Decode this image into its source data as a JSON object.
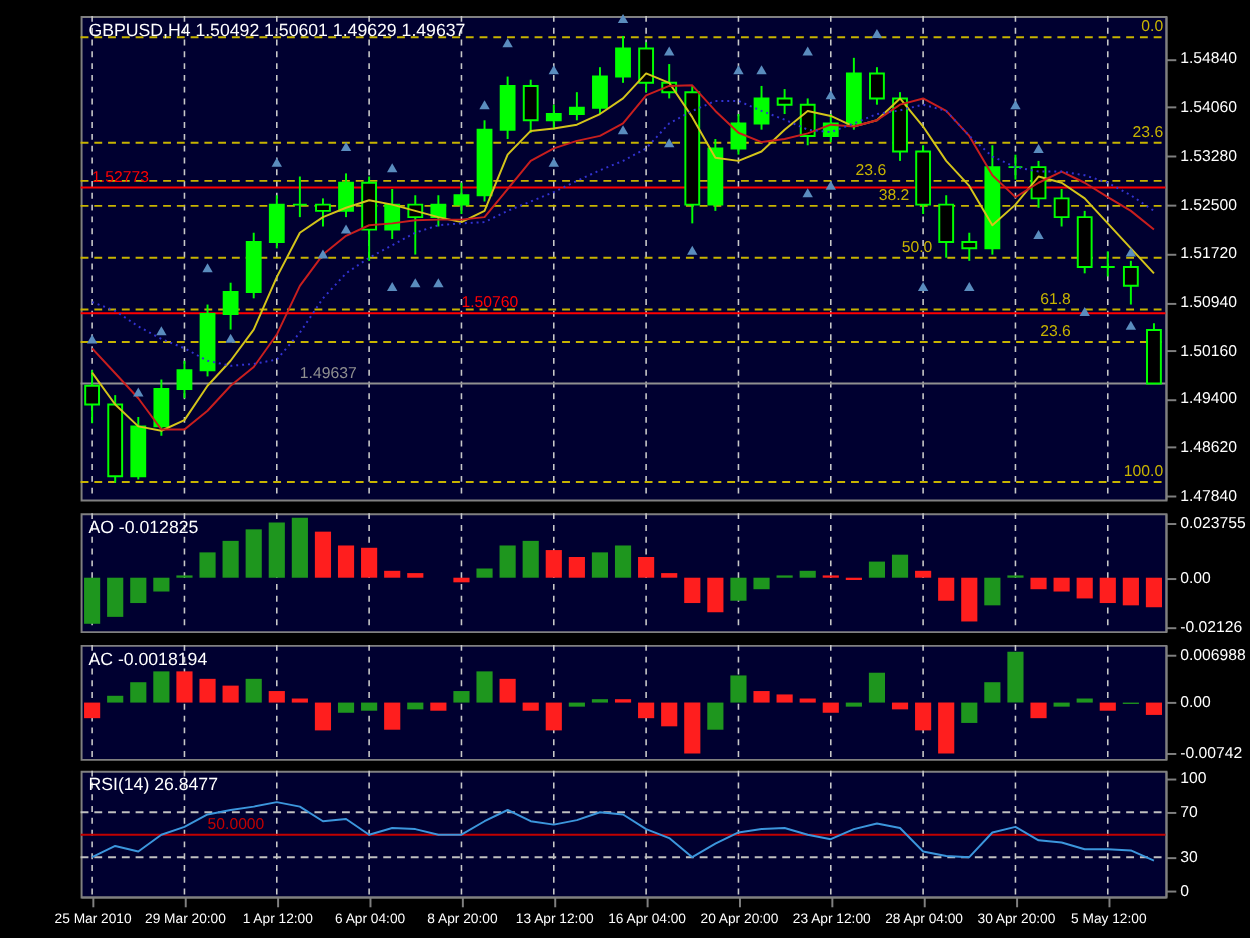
{
  "chart_data": [
    {
      "type": "candlestick",
      "title": "GBPUSD,H4 1.50492 1.50601 1.49629 1.49637",
      "categories": [
        null,
        null,
        null,
        null,
        null,
        null,
        null,
        null,
        null,
        null,
        null,
        null,
        null,
        null,
        null,
        null,
        null,
        null,
        null,
        null,
        null,
        null,
        null,
        null,
        null,
        null,
        null,
        null,
        null,
        null,
        null,
        null,
        null,
        null,
        null,
        null,
        null,
        null,
        null,
        null,
        null,
        null,
        null,
        null,
        null,
        null,
        null
      ],
      "ohlc": [
        [
          1.496,
          1.4985,
          1.49,
          1.493
        ],
        [
          1.493,
          1.4945,
          1.4805,
          1.4815
        ],
        [
          1.4815,
          1.491,
          1.481,
          1.4895
        ],
        [
          1.4895,
          1.497,
          1.488,
          1.4955
        ],
        [
          1.4955,
          1.5,
          1.494,
          1.4985
        ],
        [
          1.4985,
          1.509,
          1.4975,
          1.5075
        ],
        [
          1.5075,
          1.5125,
          1.505,
          1.511
        ],
        [
          1.511,
          1.5205,
          1.51,
          1.519
        ],
        [
          1.519,
          1.5265,
          1.518,
          1.525
        ],
        [
          1.525,
          1.5295,
          1.523,
          1.525
        ],
        [
          1.525,
          1.526,
          1.5215,
          1.524
        ],
        [
          1.524,
          1.53,
          1.523,
          1.5285
        ],
        [
          1.5285,
          1.5295,
          1.516,
          1.521
        ],
        [
          1.521,
          1.5275,
          1.5195,
          1.525
        ],
        [
          1.525,
          1.5265,
          1.517,
          1.523
        ],
        [
          1.523,
          1.5265,
          1.5215,
          1.525
        ],
        [
          1.525,
          1.5285,
          1.5235,
          1.5265
        ],
        [
          1.5265,
          1.5385,
          1.5255,
          1.537
        ],
        [
          1.537,
          1.5455,
          1.5355,
          1.544
        ],
        [
          1.544,
          1.545,
          1.5365,
          1.5385
        ],
        [
          1.5385,
          1.541,
          1.537,
          1.5395
        ],
        [
          1.5395,
          1.543,
          1.5385,
          1.5405
        ],
        [
          1.5405,
          1.547,
          1.5395,
          1.5455
        ],
        [
          1.5455,
          1.552,
          1.5445,
          1.55
        ],
        [
          1.55,
          1.551,
          1.543,
          1.5445
        ],
        [
          1.5445,
          1.5475,
          1.542,
          1.543
        ],
        [
          1.543,
          1.544,
          1.522,
          1.525
        ],
        [
          1.525,
          1.5355,
          1.524,
          1.534
        ],
        [
          1.534,
          1.5395,
          1.533,
          1.538
        ],
        [
          1.538,
          1.544,
          1.537,
          1.542
        ],
        [
          1.542,
          1.5435,
          1.5395,
          1.541
        ],
        [
          1.541,
          1.542,
          1.5345,
          1.536
        ],
        [
          1.536,
          1.5395,
          1.535,
          1.538
        ],
        [
          1.538,
          1.5485,
          1.537,
          1.546
        ],
        [
          1.546,
          1.547,
          1.541,
          1.542
        ],
        [
          1.542,
          1.543,
          1.532,
          1.5335
        ],
        [
          1.5335,
          1.5345,
          1.5235,
          1.525
        ],
        [
          1.525,
          1.5265,
          1.5165,
          1.519
        ],
        [
          1.519,
          1.5205,
          1.516,
          1.518
        ],
        [
          1.518,
          1.5345,
          1.517,
          1.531
        ],
        [
          1.531,
          1.533,
          1.529,
          1.531
        ],
        [
          1.531,
          1.532,
          1.5245,
          1.526
        ],
        [
          1.526,
          1.5275,
          1.5215,
          1.523
        ],
        [
          1.523,
          1.524,
          1.514,
          1.515
        ],
        [
          1.515,
          1.5175,
          1.5135,
          1.515
        ],
        [
          1.515,
          1.516,
          1.509,
          1.512
        ],
        [
          1.50492,
          1.50601,
          1.49629,
          1.49637
        ]
      ],
      "series": [
        {
          "type": "line",
          "color": "#d4c41a",
          "values": [
            1.4981,
            1.493,
            1.4895,
            1.4888,
            1.4905,
            1.496,
            1.5,
            1.505,
            1.5134,
            1.5205,
            1.523,
            1.5245,
            1.5257,
            1.525,
            1.524,
            1.523,
            1.5222,
            1.524,
            1.533,
            1.5368,
            1.5372,
            1.5378,
            1.5395,
            1.542,
            1.546,
            1.5445,
            1.539,
            1.5325,
            1.532,
            1.5335,
            1.537,
            1.54,
            1.5392,
            1.5375,
            1.5385,
            1.542,
            1.5375,
            1.532,
            1.528,
            1.5217,
            1.525,
            1.5295,
            1.5285,
            1.526,
            1.522,
            1.518,
            1.514
          ]
        },
        {
          "type": "line",
          "color": "#c81e1e",
          "values": [
            1.502,
            1.498,
            1.494,
            1.489,
            1.489,
            1.492,
            1.496,
            1.499,
            1.5042,
            1.512,
            1.517,
            1.52,
            1.5217,
            1.522,
            1.5225,
            1.5226,
            1.5226,
            1.523,
            1.5275,
            1.532,
            1.534,
            1.5352,
            1.536,
            1.538,
            1.5425,
            1.544,
            1.5441,
            1.54,
            1.5365,
            1.535,
            1.5355,
            1.5364,
            1.5378,
            1.5375,
            1.5385,
            1.541,
            1.542,
            1.54,
            1.536,
            1.5297,
            1.5262,
            1.5285,
            1.5303,
            1.5285,
            1.5262,
            1.524,
            1.521
          ]
        },
        {
          "type": "line",
          "color": "#3232d2",
          "line_style": "dotted",
          "values": [
            1.5094,
            1.508,
            1.5055,
            1.5035,
            1.502,
            1.5,
            1.4992,
            1.4995,
            1.5002,
            1.5045,
            1.51,
            1.514,
            1.5165,
            1.5185,
            1.5205,
            1.5217,
            1.522,
            1.5222,
            1.524,
            1.5255,
            1.527,
            1.5288,
            1.5305,
            1.532,
            1.534,
            1.538,
            1.54,
            1.5416,
            1.5416,
            1.54,
            1.5386,
            1.537,
            1.5366,
            1.538,
            1.5395,
            1.5401,
            1.541,
            1.54,
            1.536,
            1.5327,
            1.531,
            1.5303,
            1.5303,
            1.5297,
            1.5285,
            1.5265,
            1.524
          ]
        },
        {
          "type": "scatter",
          "color": "#5a8cbe",
          "marker": "triangle",
          "values": [
            1.5035,
            null,
            1.495,
            1.5048,
            null,
            1.5149,
            null,
            null,
            1.5318,
            null,
            null,
            1.5343,
            null,
            1.5309,
            null,
            null,
            null,
            1.541,
            1.5509,
            null,
            1.5466,
            null,
            null,
            1.5548,
            null,
            1.5496,
            null,
            null,
            1.5466,
            1.5466,
            null,
            1.5496,
            1.5426,
            null,
            1.5524,
            null,
            null,
            null,
            null,
            null,
            1.541,
            1.534,
            null,
            null,
            null,
            1.5174,
            null
          ]
        },
        {
          "type": "scatter",
          "color": "#5a8cbe",
          "marker": "triangle",
          "values": [
            null,
            null,
            null,
            null,
            null,
            null,
            1.5036,
            null,
            null,
            null,
            1.5171,
            1.5211,
            null,
            1.5119,
            1.5125,
            1.5125,
            null,
            null,
            null,
            null,
            1.5318,
            null,
            null,
            1.537,
            null,
            1.5349,
            1.5177,
            null,
            null,
            null,
            null,
            1.5269,
            1.5281,
            null,
            null,
            null,
            1.5119,
            null,
            1.5119,
            null,
            null,
            1.5202,
            null,
            1.5079,
            null,
            1.5057,
            null
          ]
        }
      ],
      "ylim": [
        1.4778,
        1.5552
      ],
      "yticks": [
        {
          "value": 1.5484,
          "label": "1.54840"
        },
        {
          "value": 1.5406,
          "label": "1.54060"
        },
        {
          "value": 1.5328,
          "label": "1.53280"
        },
        {
          "value": 1.525,
          "label": "1.52500"
        },
        {
          "value": 1.5172,
          "label": "1.51720"
        },
        {
          "value": 1.5094,
          "label": "1.50940"
        },
        {
          "value": 1.5016,
          "label": "1.50160"
        },
        {
          "value": 1.494,
          "label": "1.49400"
        },
        {
          "value": 1.4862,
          "label": "1.48620"
        },
        {
          "value": 1.4784,
          "label": "1.47840"
        }
      ],
      "ref_lines": [
        {
          "axis": "y",
          "value": 1.5518,
          "color": "#c8b400",
          "line_style": "dashed"
        },
        {
          "axis": "y",
          "value": 1.5349,
          "color": "#c8b400",
          "line_style": "dashed"
        },
        {
          "axis": "y",
          "value": 1.5288,
          "color": "#c8b400",
          "line_style": "dashed"
        },
        {
          "axis": "y",
          "value": 1.5248,
          "color": "#c8b400",
          "line_style": "dashed"
        },
        {
          "axis": "y",
          "value": 1.5165,
          "color": "#c8b400",
          "line_style": "dashed"
        },
        {
          "axis": "y",
          "value": 1.5082,
          "color": "#c8b400",
          "line_style": "dashed"
        },
        {
          "axis": "y",
          "value": 1.503,
          "color": "#c8b400",
          "line_style": "dashed"
        },
        {
          "axis": "y",
          "value": 1.4806,
          "color": "#c8b400",
          "line_style": "dashed"
        },
        {
          "axis": "y",
          "value": 1.52773,
          "label": "1.52773",
          "color": "#ff0000",
          "line_style": "solid"
        },
        {
          "axis": "y",
          "value": 1.5076,
          "label": "1.50760",
          "color": "#ff0000",
          "line_style": "solid"
        },
        {
          "axis": "y",
          "value": 1.49637,
          "label": "1.49637",
          "color": "#909090",
          "line_style": "solid"
        }
      ],
      "annotations": [
        {
          "text": "0.0",
          "y": 1.5518
        },
        {
          "text": "23.6",
          "y": 1.5349
        },
        {
          "text": "23.6",
          "y": 1.5288
        },
        {
          "text": "38.2",
          "y": 1.5248
        },
        {
          "text": "50.0",
          "y": 1.5165
        },
        {
          "text": "61.8",
          "y": 1.5082
        },
        {
          "text": "23.6",
          "y": 1.503
        },
        {
          "text": "100.0",
          "y": 1.4806
        }
      ],
      "grid": "x",
      "tick_labels": "y"
    },
    {
      "type": "bar",
      "title": "AO -0.012825",
      "categories": [
        null,
        null,
        null,
        null,
        null,
        null,
        null,
        null,
        null,
        null,
        null,
        null,
        null,
        null,
        null,
        null,
        null,
        null,
        null,
        null,
        null,
        null,
        null,
        null,
        null,
        null,
        null,
        null,
        null,
        null,
        null,
        null,
        null,
        null,
        null,
        null,
        null,
        null,
        null,
        null,
        null,
        null,
        null,
        null,
        null,
        null,
        null
      ],
      "values": [
        -0.02,
        -0.017,
        -0.011,
        -0.006,
        0.001,
        0.011,
        0.016,
        0.021,
        0.024,
        0.026,
        0.02,
        0.014,
        0.013,
        0.003,
        0.002,
        0.0,
        -0.002,
        0.004,
        0.014,
        0.016,
        0.012,
        0.009,
        0.011,
        0.014,
        0.009,
        0.002,
        -0.011,
        -0.015,
        -0.01,
        -0.005,
        0.001,
        0.003,
        0.001,
        -0.001,
        0.007,
        0.01,
        0.003,
        -0.01,
        -0.019,
        -0.012,
        0.001,
        -0.005,
        -0.006,
        -0.009,
        -0.011,
        -0.012,
        -0.012825
      ],
      "colors": [
        "#1e961e",
        "#1e961e",
        "#1e961e",
        "#1e961e",
        "#1e961e",
        "#1e961e",
        "#1e961e",
        "#1e961e",
        "#1e961e",
        "#1e961e",
        "#ff1e1e",
        "#ff1e1e",
        "#ff1e1e",
        "#ff1e1e",
        "#ff1e1e",
        "#ff1e1e",
        "#ff1e1e",
        "#1e961e",
        "#1e961e",
        "#1e961e",
        "#ff1e1e",
        "#ff1e1e",
        "#1e961e",
        "#1e961e",
        "#ff1e1e",
        "#ff1e1e",
        "#ff1e1e",
        "#ff1e1e",
        "#1e961e",
        "#1e961e",
        "#1e961e",
        "#1e961e",
        "#ff1e1e",
        "#ff1e1e",
        "#1e961e",
        "#1e961e",
        "#ff1e1e",
        "#ff1e1e",
        "#ff1e1e",
        "#1e961e",
        "#1e961e",
        "#ff1e1e",
        "#ff1e1e",
        "#ff1e1e",
        "#ff1e1e",
        "#ff1e1e",
        "#ff1e1e"
      ],
      "ylim": [
        -0.0232,
        0.028
      ],
      "yticks": [
        {
          "value": 0.023755,
          "label": "0.023755"
        },
        {
          "value": 0,
          "label": "0.00"
        },
        {
          "value": -0.02126,
          "label": "-0.02126"
        }
      ],
      "grid": "x",
      "tick_labels": "y"
    },
    {
      "type": "bar",
      "title": "AC -0.0018194",
      "categories": [
        null,
        null,
        null,
        null,
        null,
        null,
        null,
        null,
        null,
        null,
        null,
        null,
        null,
        null,
        null,
        null,
        null,
        null,
        null,
        null,
        null,
        null,
        null,
        null,
        null,
        null,
        null,
        null,
        null,
        null,
        null,
        null,
        null,
        null,
        null,
        null,
        null,
        null,
        null,
        null,
        null,
        null,
        null,
        null,
        null,
        null,
        null
      ],
      "values": [
        -0.0023,
        0.001,
        0.003,
        0.0046,
        0.0046,
        0.0035,
        0.0025,
        0.0035,
        0.0017,
        0.0006,
        -0.0041,
        -0.0015,
        -0.0012,
        -0.004,
        -0.001,
        -0.0012,
        0.0017,
        0.0046,
        0.0035,
        -0.0012,
        -0.0041,
        -0.0006,
        0.0005,
        0.0005,
        -0.0023,
        -0.0035,
        -0.0075,
        -0.004,
        0.004,
        0.0017,
        0.0012,
        0.0006,
        -0.0015,
        -0.0006,
        0.0044,
        -0.001,
        -0.0041,
        -0.0075,
        -0.003,
        0.003,
        0.0075,
        -0.0023,
        -0.0006,
        0.0006,
        -0.0012,
        -0.0002,
        -0.0018194
      ],
      "colors": [
        "#ff1e1e",
        "#1e961e",
        "#1e961e",
        "#1e961e",
        "#ff1e1e",
        "#ff1e1e",
        "#ff1e1e",
        "#1e961e",
        "#ff1e1e",
        "#ff1e1e",
        "#ff1e1e",
        "#1e961e",
        "#1e961e",
        "#ff1e1e",
        "#1e961e",
        "#ff1e1e",
        "#1e961e",
        "#1e961e",
        "#ff1e1e",
        "#ff1e1e",
        "#ff1e1e",
        "#1e961e",
        "#1e961e",
        "#ff1e1e",
        "#ff1e1e",
        "#ff1e1e",
        "#ff1e1e",
        "#1e961e",
        "#1e961e",
        "#ff1e1e",
        "#ff1e1e",
        "#ff1e1e",
        "#ff1e1e",
        "#1e961e",
        "#1e961e",
        "#ff1e1e",
        "#ff1e1e",
        "#ff1e1e",
        "#1e961e",
        "#1e961e",
        "#1e961e",
        "#ff1e1e",
        "#1e961e",
        "#1e961e",
        "#ff1e1e",
        "#1e961e",
        "#ff1e1e"
      ],
      "ylim": [
        -0.0083,
        0.0085
      ],
      "yticks": [
        {
          "value": 0.006988,
          "label": "0.006988"
        },
        {
          "value": 0,
          "label": "0.00"
        },
        {
          "value": -0.00742,
          "label": "-0.00742"
        }
      ],
      "grid": "x",
      "tick_labels": "y"
    },
    {
      "type": "line",
      "title": "RSI(14) 26.8477",
      "categories": [
        "25 Mar 2010",
        null,
        null,
        null,
        "29 Mar 20:00",
        null,
        null,
        null,
        "1 Apr 12:00",
        null,
        null,
        null,
        "6 Apr 04:00",
        null,
        null,
        null,
        "8 Apr 20:00",
        null,
        null,
        null,
        "13 Apr 12:00",
        null,
        null,
        null,
        "16 Apr 04:00",
        null,
        null,
        null,
        "20 Apr 20:00",
        null,
        null,
        null,
        "23 Apr 12:00",
        null,
        null,
        null,
        "28 Apr 04:00",
        null,
        null,
        null,
        "30 Apr 20:00",
        null,
        null,
        null,
        "5 May 12:00",
        null,
        null
      ],
      "series": [
        {
          "color": "#3c96dc",
          "values": [
            30,
            40,
            35,
            50,
            57,
            68,
            72,
            75,
            79,
            75,
            62,
            64,
            50,
            56,
            55,
            50,
            50,
            62,
            72,
            62,
            59,
            63,
            70,
            68,
            55,
            47,
            30,
            42,
            52,
            55,
            56,
            50,
            46,
            55,
            60,
            56,
            35,
            31,
            30,
            52,
            57,
            45,
            43,
            37,
            37,
            36,
            26.8477
          ]
        }
      ],
      "ylim": [
        -5,
        107
      ],
      "yticks": [
        100,
        70,
        30,
        0
      ],
      "ref_lines": [
        {
          "axis": "y",
          "value": 70,
          "color": "#c0c0c0",
          "line_style": "dashed"
        },
        {
          "axis": "y",
          "value": 30,
          "color": "#c0c0c0",
          "line_style": "dashed"
        },
        {
          "axis": "y",
          "value": 50,
          "label": "50.0000",
          "color": "#c00000",
          "line_style": "solid"
        }
      ],
      "grid": "x"
    }
  ]
}
